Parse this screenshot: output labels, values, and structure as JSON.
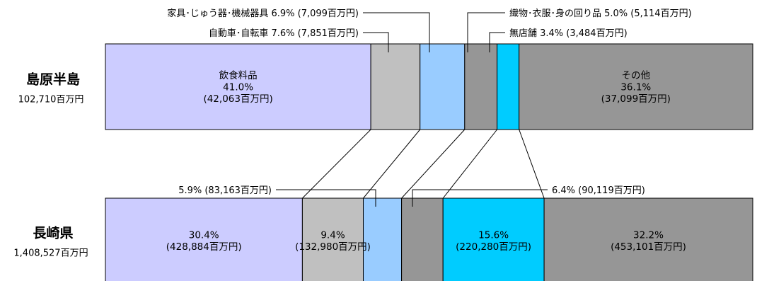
{
  "chart_data": {
    "type": "bar",
    "orientation": "horizontal-100%-stacked",
    "units": "百万円",
    "categories": [
      "飲食料品",
      "自動車・自転車",
      "家具・じゅう器・機械器具",
      "織物・衣服・身の回り品",
      "無店舗",
      "その他"
    ],
    "colors": [
      "#ccccff",
      "#c0c0c0",
      "#99ccff",
      "#969696",
      "#00ccff",
      "#969696"
    ],
    "regions": [
      {
        "name": "島原半島",
        "total": "102,710百万円",
        "percents": [
          41.0,
          7.6,
          6.9,
          5.0,
          3.4,
          36.1
        ],
        "amounts": [
          42063,
          7851,
          7099,
          5114,
          3484,
          37099
        ],
        "segment_lines": [
          [
            "飲食料品",
            "41.0%",
            "(42,063百万円)"
          ],
          [],
          [],
          [],
          [],
          [
            "その他",
            "36.1%",
            "(37,099百万円)"
          ]
        ],
        "callouts": [
          {
            "segment": 2,
            "text": "家具･じゅう器･機械器具 6.9% (7,099百万円)",
            "side": "left"
          },
          {
            "segment": 1,
            "text": "自動車･自転車 7.6% (7,851百万円)",
            "side": "left"
          },
          {
            "segment": 3,
            "text": "織物･衣服･身の回り品 5.0% (5,114百万円)",
            "side": "right"
          },
          {
            "segment": 4,
            "text": "無店舗 3.4% (3,484百万円)",
            "side": "right"
          }
        ]
      },
      {
        "name": "長崎県",
        "total": "1,408,527百万円",
        "percents": [
          30.4,
          9.4,
          5.9,
          6.4,
          15.6,
          32.2
        ],
        "amounts": [
          428884,
          132980,
          83163,
          90119,
          220280,
          453101
        ],
        "segment_lines": [
          [
            "30.4%",
            "(428,884百万円)"
          ],
          [
            "9.4%",
            "(132,980百万円)"
          ],
          [],
          [],
          [
            "15.6%",
            "(220,280百万円)"
          ],
          [
            "32.2%",
            "(453,101百万円)"
          ]
        ],
        "callouts": [
          {
            "segment": 2,
            "text": "5.9% (83,163百万円)",
            "side": "left"
          },
          {
            "segment": 3,
            "text": "6.4% (90,119百万円)",
            "side": "right"
          }
        ]
      }
    ]
  }
}
